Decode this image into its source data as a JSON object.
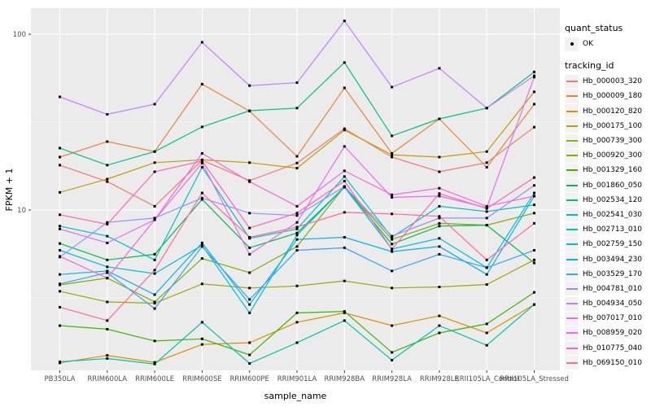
{
  "chart_data": {
    "type": "line",
    "title": "",
    "xlabel": "sample_name",
    "ylabel": "FPKM + 1",
    "yscale": "log10",
    "ylim": [
      1.2,
      140
    ],
    "grid": true,
    "legend_position": "right",
    "panel_bg": "#EBEBEB",
    "gridline_color": "#FFFFFF",
    "point_color": "#000000",
    "axis_text_color": "#4D4D4D",
    "y_ticks": [
      {
        "value": 100,
        "label": "100"
      },
      {
        "value": 10,
        "label": "10"
      }
    ],
    "y_minor_gridlines": [
      3.162,
      31.62
    ],
    "categories": [
      "PB350LA",
      "RRIM600LA",
      "RRIM600LE",
      "RRIM600SE",
      "RRIM600PE",
      "RRIM901LA",
      "RRIM928BA",
      "RRIM928LA",
      "RRIM928LE",
      "RRII105LA_Control",
      "RRII105LA_Stressed"
    ],
    "series": [
      {
        "name": "Hb_000003_320",
        "color": "#F8766D",
        "values": [
          18,
          14.5,
          10.5,
          19.2,
          14.7,
          18.5,
          29,
          20,
          16.5,
          18.6,
          29.6
        ]
      },
      {
        "name": "Hb_000009_180",
        "color": "#EA8331",
        "values": [
          20,
          24.5,
          21.5,
          52,
          36.5,
          20.2,
          49.5,
          21,
          33,
          17.5,
          40
        ]
      },
      {
        "name": "Hb_000120_820",
        "color": "#D89000",
        "values": [
          1.35,
          1.49,
          1.36,
          1.72,
          1.76,
          2.3,
          2.6,
          2.2,
          2.5,
          2.0,
          2.9
        ]
      },
      {
        "name": "Hb_000175_100",
        "color": "#C09B00",
        "values": [
          12.6,
          15,
          18.6,
          19.3,
          18.6,
          17.3,
          28.5,
          20.6,
          20,
          21.5,
          47
        ]
      },
      {
        "name": "Hb_000739_300",
        "color": "#A3A500",
        "values": [
          3.45,
          3.0,
          2.95,
          3.8,
          3.6,
          3.7,
          3.95,
          3.6,
          3.65,
          3.77,
          5.2
        ]
      },
      {
        "name": "Hb_000920_300",
        "color": "#7CAE00",
        "values": [
          3.75,
          4.1,
          3.0,
          5.3,
          4.4,
          6.2,
          13.6,
          6.8,
          8.4,
          8.2,
          9.6
        ]
      },
      {
        "name": "Hb_001329_160",
        "color": "#39B600",
        "values": [
          2.2,
          2.1,
          1.8,
          1.85,
          1.5,
          2.6,
          2.65,
          1.55,
          2.0,
          2.25,
          3.4
        ]
      },
      {
        "name": "Hb_001860_050",
        "color": "#00BB4E",
        "values": [
          6.45,
          5.2,
          5.6,
          11.5,
          6.1,
          7.4,
          13.5,
          6.4,
          8.1,
          8.2,
          5.0
        ]
      },
      {
        "name": "Hb_002534_120",
        "color": "#00BF7D",
        "values": [
          22.5,
          18,
          21.5,
          29.7,
          36.7,
          38,
          69,
          26.4,
          33,
          38,
          61
        ]
      },
      {
        "name": "Hb_002541_030",
        "color": "#00C1A3",
        "values": [
          1.37,
          1.43,
          1.33,
          2.3,
          1.34,
          1.76,
          2.35,
          1.4,
          2.2,
          1.7,
          2.9
        ]
      },
      {
        "name": "Hb_002713_010",
        "color": "#00BFC4",
        "values": [
          8.1,
          7.1,
          5.2,
          17.5,
          6.9,
          7.8,
          15.5,
          7.0,
          10.5,
          9.8,
          10.7
        ]
      },
      {
        "name": "Hb_002759_150",
        "color": "#00BAE0",
        "values": [
          5.9,
          4.75,
          4.35,
          6.3,
          2.6,
          7.2,
          13.5,
          6.0,
          6.9,
          4.7,
          12.5
        ]
      },
      {
        "name": "Hb_003494_230",
        "color": "#00B0F6",
        "values": [
          4.3,
          4.5,
          3.3,
          6.5,
          2.9,
          6.8,
          7.0,
          5.8,
          6.2,
          4.3,
          12
        ]
      },
      {
        "name": "Hb_003529_170",
        "color": "#35A2FF",
        "values": [
          3.8,
          4.4,
          2.75,
          6.2,
          3.1,
          5.9,
          6.1,
          4.5,
          5.6,
          4.7,
          5.9
        ]
      },
      {
        "name": "Hb_004781_010",
        "color": "#9590FF",
        "values": [
          5.4,
          8.5,
          9.0,
          11.7,
          9.6,
          9.3,
          13.6,
          7.1,
          9.0,
          9.0,
          13.8
        ]
      },
      {
        "name": "Hb_004934_050",
        "color": "#C77CFF",
        "values": [
          44,
          35,
          40,
          90,
          51,
          53,
          119,
          50,
          64,
          38,
          58
        ]
      },
      {
        "name": "Hb_007017_010",
        "color": "#E76BF3",
        "values": [
          7.8,
          6.5,
          8.8,
          18.5,
          5.6,
          8.5,
          23,
          11.8,
          12,
          10.3,
          57
        ]
      },
      {
        "name": "Hb_008959_020",
        "color": "#FA62DB",
        "values": [
          5.45,
          4.1,
          8.8,
          21,
          14.5,
          10.5,
          16.7,
          12.2,
          13.3,
          10.5,
          12.0
        ]
      },
      {
        "name": "Hb_010775_040",
        "color": "#FF62BC",
        "values": [
          9.4,
          8.3,
          16.5,
          19,
          7.9,
          9.6,
          14.6,
          6.0,
          12.4,
          10.2,
          15.3
        ]
      },
      {
        "name": "Hb_069150_010",
        "color": "#FF6A98",
        "values": [
          2.8,
          2.35,
          4.55,
          12.5,
          7.0,
          8.0,
          9.7,
          9.5,
          9.2,
          5.2,
          8.4
        ]
      }
    ]
  },
  "legend": {
    "quant_status_title": "quant_status",
    "quant_status_ok_label": "OK",
    "tracking_id_title": "tracking_id"
  }
}
